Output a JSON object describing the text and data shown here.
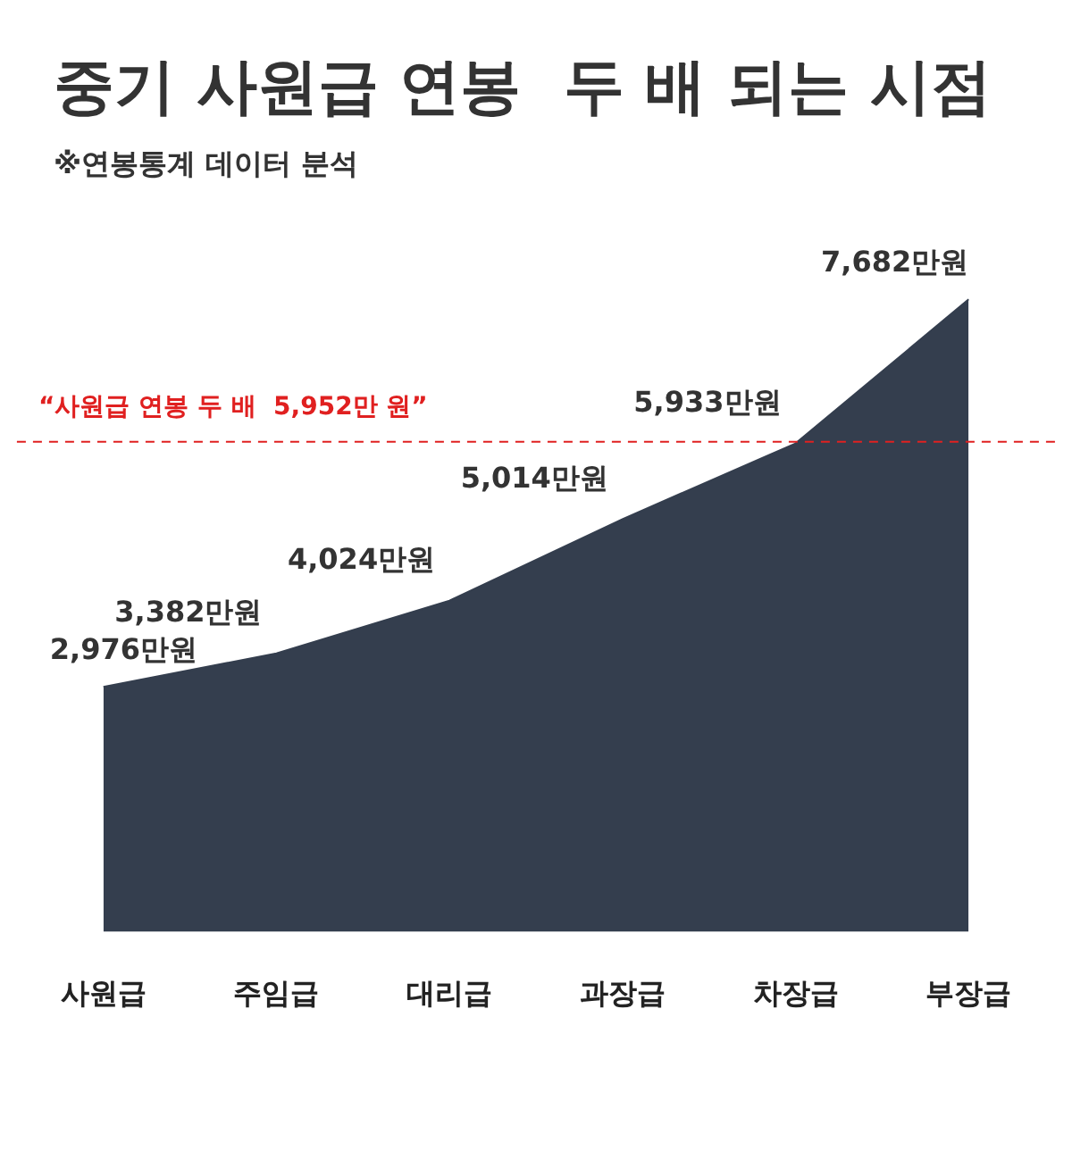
{
  "chart_data": {
    "type": "area",
    "title": "중기 사원급 연봉  두 배 되는 시점",
    "subtitle": "※연봉통계 데이터 분석",
    "categories": [
      "사원급",
      "주임급",
      "대리급",
      "과장급",
      "차장급",
      "부장급"
    ],
    "values": [
      2976,
      3382,
      4024,
      5014,
      5933,
      7682
    ],
    "value_labels": [
      "2,976만원",
      "3,382만원",
      "4,024만원",
      "5,014만원",
      "5,933만원",
      "7,682만원"
    ],
    "color": "#343e4e",
    "ref_lines": [
      {
        "axis": "y",
        "value": 5952,
        "label": "“사원급 연봉 두 배  5,952만 원”",
        "color": "#e02020",
        "line_style": "dashed"
      }
    ],
    "grid": false,
    "legend": false,
    "tick_labels": "x"
  }
}
